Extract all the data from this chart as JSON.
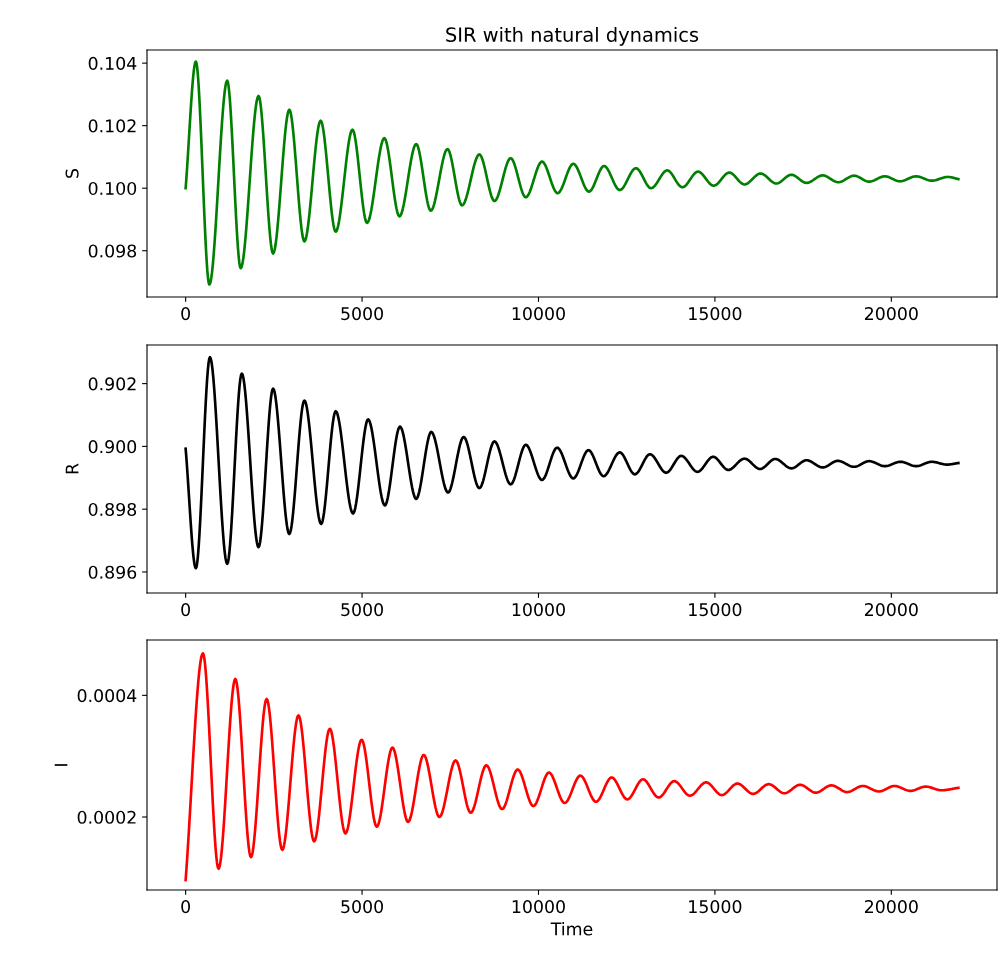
{
  "chart_data": [
    {
      "type": "line",
      "title": "SIR with natural dynamics",
      "ylabel": "S",
      "grid": false,
      "xlim": [
        -1095,
        22995
      ],
      "xticks": [
        0,
        5000,
        10000,
        15000,
        20000
      ],
      "ylim": [
        0.09652,
        0.10442
      ],
      "yticks": [
        {
          "value": 0.098,
          "label": "0.098"
        },
        {
          "value": 0.1,
          "label": "0.100"
        },
        {
          "value": 0.102,
          "label": "0.102"
        },
        {
          "value": 0.104,
          "label": "0.104"
        }
      ],
      "series": [
        {
          "color": "#008000",
          "x": [
            0,
            290,
            673,
            1178,
            1561,
            2066,
            2479,
            2938,
            3366,
            3826,
            4254,
            4728,
            5141,
            5631,
            6060,
            6534,
            6947,
            7421,
            7834,
            8324,
            8753,
            9212,
            9640,
            10099,
            10543,
            10987,
            11431,
            11859,
            12303,
            12762,
            13190,
            13649,
            14078,
            14521,
            14965,
            15409,
            15837,
            16296,
            16740,
            17168,
            17597,
            18056,
            18499,
            18943,
            19372,
            19816,
            20244,
            20704,
            21147,
            21606,
            21900
          ],
          "values": [
            0.1,
            0.10405,
            0.09692,
            0.10344,
            0.09744,
            0.10295,
            0.09791,
            0.10251,
            0.0983,
            0.10216,
            0.09861,
            0.10187,
            0.09889,
            0.1016,
            0.0991,
            0.10141,
            0.09928,
            0.10125,
            0.09945,
            0.10108,
            0.09959,
            0.10096,
            0.09971,
            0.10085,
            0.09984,
            0.10078,
            0.09989,
            0.10071,
            0.09994,
            0.10064,
            0.1,
            0.10057,
            0.10003,
            0.10053,
            0.10008,
            0.1005,
            0.10012,
            0.10047,
            0.10015,
            0.10043,
            0.10017,
            0.10041,
            0.10019,
            0.1004,
            0.10021,
            0.10038,
            0.10022,
            0.10038,
            0.10024,
            0.10036,
            0.10029
          ]
        }
      ]
    },
    {
      "type": "line",
      "ylabel": "R",
      "grid": false,
      "xlim": [
        -1095,
        22995
      ],
      "xticks": [
        0,
        5000,
        10000,
        15000,
        20000
      ],
      "ylim": [
        0.89533,
        0.90323
      ],
      "yticks": [
        {
          "value": 0.896,
          "label": "0.896"
        },
        {
          "value": 0.898,
          "label": "0.898"
        },
        {
          "value": 0.9,
          "label": "0.900"
        },
        {
          "value": 0.902,
          "label": "0.902"
        }
      ],
      "series": [
        {
          "color": "#000000",
          "x": [
            0,
            290,
            689,
            1178,
            1592,
            2066,
            2479,
            2938,
            3366,
            3841,
            4254,
            4744,
            5172,
            5646,
            6075,
            6534,
            6962,
            7436,
            7880,
            8324,
            8753,
            9212,
            9640,
            10099,
            10528,
            10987,
            11416,
            11844,
            12303,
            12731,
            13160,
            13619,
            14047,
            14506,
            14950,
            15378,
            15837,
            16281,
            16709,
            17168,
            17597,
            18056,
            18484,
            18943,
            19372,
            19816,
            20260,
            20704,
            21147,
            21576,
            21900
          ],
          "values": [
            0.89993,
            0.89612,
            0.90284,
            0.89626,
            0.90232,
            0.89679,
            0.90184,
            0.89721,
            0.90146,
            0.89753,
            0.90112,
            0.89786,
            0.90086,
            0.89812,
            0.90063,
            0.89833,
            0.90046,
            0.89853,
            0.9003,
            0.89867,
            0.90016,
            0.89879,
            0.90005,
            0.89893,
            0.89996,
            0.89898,
            0.89988,
            0.89905,
            0.89981,
            0.89911,
            0.89975,
            0.89916,
            0.8997,
            0.89919,
            0.89967,
            0.89925,
            0.89961,
            0.89928,
            0.8996,
            0.8993,
            0.89956,
            0.89933,
            0.89954,
            0.89935,
            0.89953,
            0.89937,
            0.89951,
            0.89937,
            0.89951,
            0.89942,
            0.89947
          ]
        }
      ]
    },
    {
      "type": "line",
      "ylabel": "I",
      "xlabel": "Time",
      "grid": false,
      "xlim": [
        -1095,
        22995
      ],
      "xticks": [
        0,
        5000,
        10000,
        15000,
        20000
      ],
      "ylim": [
        8e-05,
        0.000491
      ],
      "yticks": [
        {
          "value": 0.0002,
          "label": "0.0002"
        },
        {
          "value": 0.0004,
          "label": "0.0004"
        }
      ],
      "series": [
        {
          "color": "#ff0000",
          "x": [
            0,
            490,
            933,
            1408,
            1852,
            2296,
            2739,
            3198,
            3642,
            4086,
            4529,
            4988,
            5417,
            5861,
            6304,
            6748,
            7192,
            7651,
            8079,
            8523,
            8967,
            9411,
            9854,
            10298,
            10742,
            11186,
            11630,
            12073,
            12517,
            12961,
            13405,
            13849,
            14292,
            14751,
            15195,
            15639,
            16082,
            16526,
            16970,
            17414,
            17858,
            18301,
            18745,
            19189,
            19648,
            20092,
            20536,
            20979,
            21423,
            21900
          ],
          "values": [
            9.64e-05,
            0.000469,
            0.000115,
            0.000427,
            0.000134,
            0.000394,
            0.000146,
            0.000367,
            0.00016,
            0.000345,
            0.000173,
            0.000327,
            0.000184,
            0.000314,
            0.000192,
            0.000302,
            0.0002,
            0.000293,
            0.000207,
            0.000285,
            0.000213,
            0.000278,
            0.000218,
            0.000273,
            0.000223,
            0.000268,
            0.000225,
            0.000265,
            0.000229,
            0.000262,
            0.000232,
            0.000259,
            0.000235,
            0.000257,
            0.000236,
            0.000255,
            0.000238,
            0.000254,
            0.000239,
            0.000253,
            0.00024,
            0.000252,
            0.000241,
            0.000251,
            0.000242,
            0.000251,
            0.000243,
            0.00025,
            0.000244,
            0.000248
          ]
        }
      ]
    }
  ]
}
